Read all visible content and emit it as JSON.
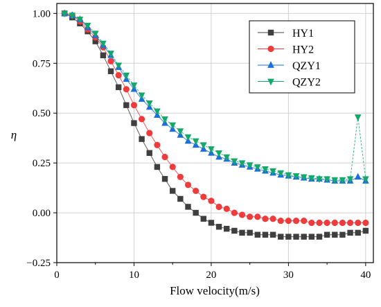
{
  "chart_data": {
    "type": "line",
    "title": "",
    "xlabel": "Flow velocity(m/s)",
    "ylabel": "η",
    "xlim": [
      0,
      41
    ],
    "ylim": [
      -0.25,
      1.05
    ],
    "xticks": [
      0,
      10,
      20,
      30,
      40
    ],
    "yticks": [
      -0.25,
      0.0,
      0.25,
      0.5,
      0.75,
      1.0
    ],
    "xtick_labels": [
      "0",
      "10",
      "20",
      "30",
      "40"
    ],
    "ytick_labels": [
      "−0.25",
      "0.00",
      "0.25",
      "0.50",
      "0.75",
      "1.00"
    ],
    "grid": true,
    "legend_position": "top-right",
    "x": [
      1,
      2,
      3,
      4,
      5,
      6,
      7,
      8,
      9,
      10,
      11,
      12,
      13,
      14,
      15,
      16,
      17,
      18,
      19,
      20,
      21,
      22,
      23,
      24,
      25,
      26,
      27,
      28,
      29,
      30,
      31,
      32,
      33,
      34,
      35,
      36,
      37,
      38,
      39,
      40
    ],
    "series": [
      {
        "name": "HY1",
        "marker": "square",
        "color": "#3f3f3f",
        "values": [
          1.0,
          0.98,
          0.95,
          0.91,
          0.86,
          0.79,
          0.71,
          0.63,
          0.54,
          0.45,
          0.37,
          0.3,
          0.23,
          0.17,
          0.11,
          0.07,
          0.03,
          0.0,
          -0.03,
          -0.05,
          -0.07,
          -0.08,
          -0.09,
          -0.1,
          -0.1,
          -0.11,
          -0.11,
          -0.11,
          -0.12,
          -0.12,
          -0.12,
          -0.12,
          -0.12,
          -0.12,
          -0.11,
          -0.11,
          -0.11,
          -0.1,
          -0.1,
          -0.09
        ]
      },
      {
        "name": "HY2",
        "marker": "circle",
        "color": "#ef3b3b",
        "values": [
          1.0,
          0.99,
          0.96,
          0.92,
          0.88,
          0.83,
          0.76,
          0.69,
          0.62,
          0.54,
          0.47,
          0.4,
          0.34,
          0.28,
          0.23,
          0.18,
          0.14,
          0.11,
          0.08,
          0.06,
          0.03,
          0.02,
          0.0,
          -0.01,
          -0.02,
          -0.02,
          -0.03,
          -0.03,
          -0.04,
          -0.04,
          -0.04,
          -0.04,
          -0.05,
          -0.05,
          -0.05,
          -0.05,
          -0.05,
          -0.05,
          -0.05,
          -0.05
        ]
      },
      {
        "name": "QZY1",
        "marker": "triangle-up",
        "color": "#1a6fd8",
        "values": [
          1.0,
          0.99,
          0.97,
          0.93,
          0.89,
          0.84,
          0.79,
          0.73,
          0.67,
          0.62,
          0.57,
          0.53,
          0.49,
          0.45,
          0.42,
          0.39,
          0.36,
          0.34,
          0.32,
          0.3,
          0.28,
          0.27,
          0.25,
          0.24,
          0.23,
          0.22,
          0.21,
          0.2,
          0.19,
          0.185,
          0.18,
          0.175,
          0.17,
          0.17,
          0.165,
          0.16,
          0.16,
          0.16,
          0.18,
          0.16
        ]
      },
      {
        "name": "QZY2",
        "marker": "triangle-down",
        "color": "#15a86b",
        "values": [
          1.0,
          0.99,
          0.97,
          0.94,
          0.9,
          0.85,
          0.8,
          0.74,
          0.69,
          0.64,
          0.59,
          0.55,
          0.51,
          0.47,
          0.44,
          0.41,
          0.38,
          0.36,
          0.34,
          0.32,
          0.3,
          0.28,
          0.26,
          0.25,
          0.24,
          0.23,
          0.22,
          0.21,
          0.2,
          0.19,
          0.185,
          0.18,
          0.175,
          0.17,
          0.17,
          0.165,
          0.165,
          0.17,
          0.48,
          0.17
        ]
      }
    ]
  }
}
